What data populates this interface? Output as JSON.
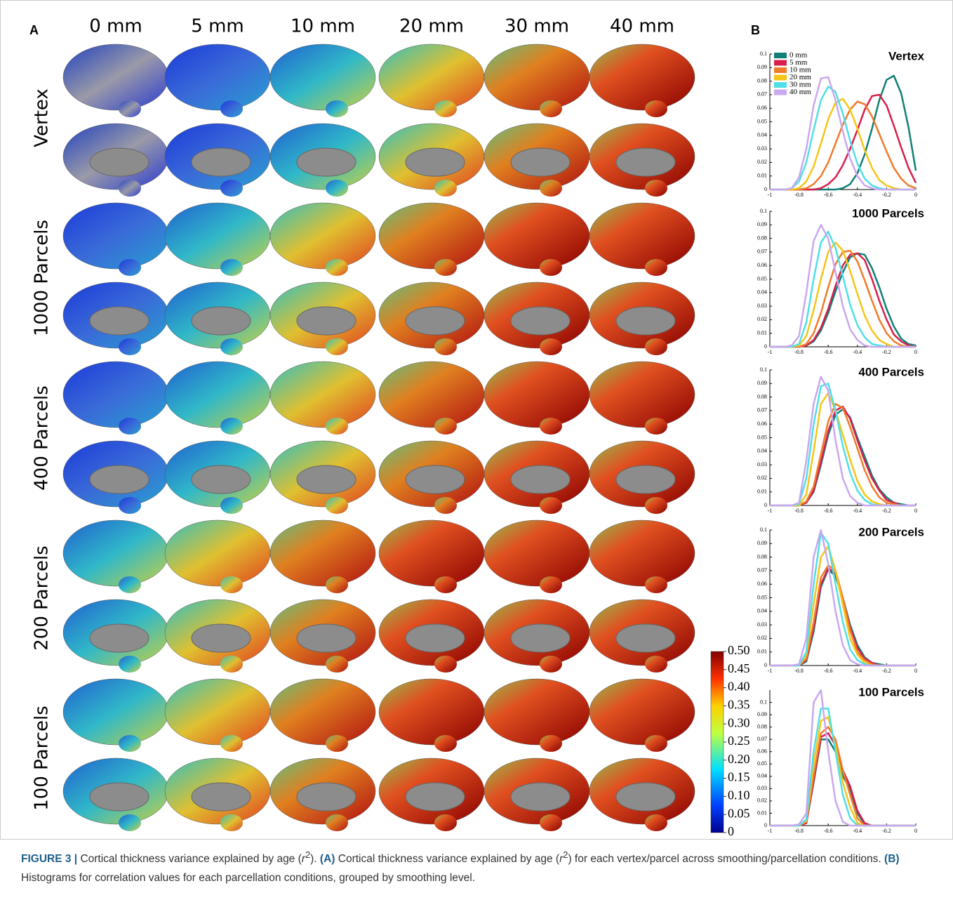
{
  "panel_a": {
    "label": "A",
    "columns": [
      "0 mm",
      "5 mm",
      "10 mm",
      "20 mm",
      "30 mm",
      "40 mm"
    ],
    "rows": [
      "Vertex",
      "1000 Parcels",
      "400 Parcels",
      "200 Parcels",
      "100 Parcels"
    ],
    "colorbar": {
      "lim": [
        0,
        0.5
      ],
      "ticks": [
        0,
        0.05,
        {
          "value": 0.1,
          "label": "0.10"
        },
        0.15,
        {
          "value": 0.2,
          "label": "0.20"
        },
        0.25,
        {
          "value": 0.3,
          "label": "0.30"
        },
        0.35,
        {
          "value": 0.4,
          "label": "0.40"
        },
        0.45,
        {
          "value": 0.5,
          "label": "0.50"
        }
      ]
    }
  },
  "panel_b": {
    "label": "B"
  },
  "chart_data": [
    {
      "type": "line",
      "title": "Vertex",
      "legend": "upper left",
      "x": [
        -1,
        -0.95,
        -0.9,
        -0.85,
        -0.8,
        -0.75,
        -0.7,
        -0.65,
        -0.6,
        -0.55,
        -0.5,
        -0.45,
        -0.4,
        -0.35,
        -0.3,
        -0.25,
        -0.2,
        -0.15,
        -0.1,
        -0.05,
        0
      ],
      "xlim": [
        -1,
        0
      ],
      "ylim": [
        0,
        0.1
      ],
      "xticks": [
        -1,
        -0.8,
        -0.6,
        -0.4,
        -0.2,
        0
      ],
      "yticks": [
        0,
        0.01,
        0.02,
        0.03,
        0.04,
        0.05,
        0.06,
        0.07,
        0.08,
        0.09,
        0.1
      ],
      "series": [
        {
          "name": "0 mm",
          "color": "#0f7f78",
          "values": [
            0,
            0,
            0,
            0,
            0,
            0,
            0,
            0,
            0,
            0,
            0.001,
            0.004,
            0.012,
            0.026,
            0.045,
            0.066,
            0.081,
            0.084,
            0.071,
            0.046,
            0.014
          ]
        },
        {
          "name": "5 mm",
          "color": "#d81f4a",
          "values": [
            0,
            0,
            0,
            0,
            0,
            0,
            0,
            0.001,
            0.004,
            0.009,
            0.018,
            0.03,
            0.044,
            0.059,
            0.069,
            0.07,
            0.062,
            0.047,
            0.031,
            0.016,
            0.005
          ]
        },
        {
          "name": "10 mm",
          "color": "#f07b2a",
          "values": [
            0,
            0,
            0,
            0,
            0,
            0.001,
            0.004,
            0.01,
            0.02,
            0.034,
            0.048,
            0.059,
            0.065,
            0.063,
            0.054,
            0.041,
            0.028,
            0.016,
            0.008,
            0.003,
            0.001
          ]
        },
        {
          "name": "20 mm",
          "color": "#f5c518",
          "values": [
            0,
            0,
            0,
            0,
            0.001,
            0.006,
            0.017,
            0.034,
            0.052,
            0.064,
            0.067,
            0.059,
            0.045,
            0.029,
            0.016,
            0.007,
            0.003,
            0.001,
            0,
            0,
            0
          ]
        },
        {
          "name": "30 mm",
          "color": "#4ee0e6",
          "values": [
            0,
            0,
            0,
            0.001,
            0.006,
            0.02,
            0.044,
            0.066,
            0.076,
            0.072,
            0.056,
            0.036,
            0.019,
            0.008,
            0.003,
            0.001,
            0,
            0,
            0,
            0,
            0
          ]
        },
        {
          "name": "40 mm",
          "color": "#c9a8f0",
          "values": [
            0,
            0,
            0,
            0.001,
            0.009,
            0.03,
            0.062,
            0.082,
            0.083,
            0.066,
            0.043,
            0.023,
            0.01,
            0.003,
            0.001,
            0,
            0,
            0,
            0,
            0,
            0
          ]
        }
      ]
    },
    {
      "type": "line",
      "title": "1000 Parcels",
      "x": [
        -1,
        -0.95,
        -0.9,
        -0.85,
        -0.8,
        -0.75,
        -0.7,
        -0.65,
        -0.6,
        -0.55,
        -0.5,
        -0.45,
        -0.4,
        -0.35,
        -0.3,
        -0.25,
        -0.2,
        -0.15,
        -0.1,
        -0.05,
        0
      ],
      "xlim": [
        -1,
        0
      ],
      "ylim": [
        0,
        0.1
      ],
      "xticks": [
        -1,
        -0.8,
        -0.6,
        -0.4,
        -0.2,
        0
      ],
      "yticks": [
        0,
        0.01,
        0.02,
        0.03,
        0.04,
        0.05,
        0.06,
        0.07,
        0.08,
        0.09,
        0.1
      ],
      "series": [
        {
          "color": "#0f7f78",
          "values": [
            0,
            0,
            0,
            0,
            0,
            0.001,
            0.004,
            0.012,
            0.025,
            0.041,
            0.055,
            0.066,
            0.069,
            0.068,
            0.058,
            0.044,
            0.028,
            0.015,
            0.006,
            0.002,
            0.001
          ]
        },
        {
          "color": "#d81f4a",
          "values": [
            0,
            0,
            0,
            0,
            0,
            0.001,
            0.005,
            0.014,
            0.028,
            0.045,
            0.06,
            0.068,
            0.069,
            0.064,
            0.05,
            0.034,
            0.02,
            0.009,
            0.004,
            0.001,
            0
          ]
        },
        {
          "color": "#f07b2a",
          "values": [
            0,
            0,
            0,
            0,
            0,
            0.002,
            0.01,
            0.025,
            0.044,
            0.061,
            0.07,
            0.071,
            0.063,
            0.049,
            0.034,
            0.02,
            0.01,
            0.004,
            0.001,
            0,
            0
          ]
        },
        {
          "color": "#f5c518",
          "values": [
            0,
            0,
            0,
            0,
            0.001,
            0.008,
            0.027,
            0.05,
            0.07,
            0.077,
            0.071,
            0.056,
            0.039,
            0.023,
            0.012,
            0.005,
            0.002,
            0,
            0,
            0,
            0
          ]
        },
        {
          "color": "#4ee0e6",
          "values": [
            0,
            0,
            0,
            0,
            0.002,
            0.018,
            0.05,
            0.077,
            0.085,
            0.073,
            0.052,
            0.031,
            0.016,
            0.007,
            0.002,
            0.001,
            0,
            0,
            0,
            0,
            0
          ]
        },
        {
          "color": "#c9a8f0",
          "values": [
            0,
            0,
            0,
            0.001,
            0.008,
            0.04,
            0.078,
            0.09,
            0.08,
            0.055,
            0.03,
            0.013,
            0.005,
            0.001,
            0,
            0,
            0,
            0,
            0,
            0,
            0
          ]
        }
      ]
    },
    {
      "type": "line",
      "title": "400 Parcels",
      "x": [
        -1,
        -0.95,
        -0.9,
        -0.85,
        -0.8,
        -0.75,
        -0.7,
        -0.65,
        -0.6,
        -0.55,
        -0.5,
        -0.45,
        -0.4,
        -0.35,
        -0.3,
        -0.25,
        -0.2,
        -0.15,
        -0.1,
        -0.05,
        0
      ],
      "xlim": [
        -1,
        0
      ],
      "ylim": [
        0,
        0.1
      ],
      "xticks": [
        -1,
        -0.8,
        -0.6,
        -0.4,
        -0.2,
        0
      ],
      "yticks": [
        0,
        0.01,
        0.02,
        0.03,
        0.04,
        0.05,
        0.06,
        0.07,
        0.08,
        0.09,
        0.1
      ],
      "series": [
        {
          "color": "#0f7f78",
          "values": [
            0,
            0,
            0,
            0,
            0,
            0.002,
            0.01,
            0.03,
            0.052,
            0.067,
            0.071,
            0.065,
            0.05,
            0.036,
            0.022,
            0.012,
            0.006,
            0.002,
            0.001,
            0,
            0
          ]
        },
        {
          "color": "#d81f4a",
          "values": [
            0,
            0,
            0,
            0,
            0,
            0.002,
            0.011,
            0.032,
            0.055,
            0.07,
            0.073,
            0.064,
            0.048,
            0.033,
            0.02,
            0.011,
            0.004,
            0.002,
            0,
            0,
            0
          ]
        },
        {
          "color": "#f07b2a",
          "values": [
            0,
            0,
            0,
            0,
            0,
            0.003,
            0.014,
            0.038,
            0.062,
            0.075,
            0.072,
            0.058,
            0.042,
            0.026,
            0.014,
            0.006,
            0.002,
            0.001,
            0,
            0,
            0
          ]
        },
        {
          "color": "#f5c518",
          "values": [
            0,
            0,
            0,
            0,
            0,
            0.008,
            0.04,
            0.075,
            0.083,
            0.07,
            0.052,
            0.034,
            0.018,
            0.008,
            0.003,
            0.001,
            0,
            0,
            0,
            0,
            0
          ]
        },
        {
          "color": "#4ee0e6",
          "values": [
            0,
            0,
            0,
            0,
            0.001,
            0.02,
            0.06,
            0.088,
            0.09,
            0.07,
            0.044,
            0.024,
            0.011,
            0.004,
            0.001,
            0,
            0,
            0,
            0,
            0,
            0
          ]
        },
        {
          "color": "#c9a8f0",
          "values": [
            0,
            0,
            0,
            0,
            0.002,
            0.033,
            0.075,
            0.095,
            0.085,
            0.048,
            0.02,
            0.007,
            0.002,
            0,
            0,
            0,
            0,
            0,
            0,
            0,
            0
          ]
        }
      ]
    },
    {
      "type": "line",
      "title": "200 Parcels",
      "x": [
        -1,
        -0.95,
        -0.9,
        -0.85,
        -0.8,
        -0.75,
        -0.7,
        -0.65,
        -0.6,
        -0.55,
        -0.5,
        -0.45,
        -0.4,
        -0.35,
        -0.3,
        -0.25,
        -0.2,
        -0.15,
        -0.1,
        -0.05,
        0
      ],
      "xlim": [
        -1,
        0
      ],
      "ylim": [
        0,
        0.1
      ],
      "xticks": [
        -1,
        -0.8,
        -0.6,
        -0.4,
        -0.2,
        0
      ],
      "yticks": [
        0,
        0.01,
        0.02,
        0.03,
        0.04,
        0.05,
        0.06,
        0.07,
        0.08,
        0.09,
        0.1
      ],
      "series": [
        {
          "color": "#0f7f78",
          "values": [
            0,
            0,
            0,
            0,
            0,
            0.003,
            0.025,
            0.058,
            0.071,
            0.066,
            0.05,
            0.03,
            0.015,
            0.006,
            0.002,
            0.001,
            0,
            0,
            0,
            0,
            0
          ]
        },
        {
          "color": "#d81f4a",
          "values": [
            0,
            0,
            0,
            0,
            0,
            0.004,
            0.028,
            0.06,
            0.072,
            0.068,
            0.05,
            0.028,
            0.013,
            0.005,
            0.002,
            0,
            0,
            0,
            0,
            0,
            0
          ]
        },
        {
          "color": "#f07b2a",
          "values": [
            0,
            0,
            0,
            0,
            0,
            0.005,
            0.032,
            0.065,
            0.074,
            0.07,
            0.05,
            0.026,
            0.01,
            0.004,
            0.001,
            0,
            0,
            0,
            0,
            0,
            0
          ]
        },
        {
          "color": "#f5c518",
          "values": [
            0,
            0,
            0,
            0,
            0,
            0.008,
            0.045,
            0.08,
            0.088,
            0.07,
            0.045,
            0.02,
            0.008,
            0.002,
            0,
            0,
            0,
            0,
            0,
            0,
            0
          ]
        },
        {
          "color": "#4ee0e6",
          "values": [
            0,
            0,
            0,
            0,
            0,
            0.01,
            0.06,
            0.098,
            0.09,
            0.06,
            0.032,
            0.012,
            0.004,
            0.001,
            0,
            0,
            0,
            0,
            0,
            0,
            0
          ]
        },
        {
          "color": "#c9a8f0",
          "values": [
            0,
            0,
            0,
            0,
            0.001,
            0.02,
            0.08,
            0.1,
            0.075,
            0.04,
            0.015,
            0.004,
            0.001,
            0,
            0,
            0,
            0,
            0,
            0,
            0,
            0
          ]
        }
      ]
    },
    {
      "type": "line",
      "title": "100 Parcels",
      "x": [
        -1,
        -0.95,
        -0.9,
        -0.85,
        -0.8,
        -0.75,
        -0.7,
        -0.65,
        -0.6,
        -0.55,
        -0.5,
        -0.45,
        -0.4,
        -0.35,
        -0.3,
        -0.25,
        -0.2,
        -0.15,
        -0.1,
        -0.05,
        0
      ],
      "xlim": [
        -1,
        0
      ],
      "ylim": [
        0,
        0.11
      ],
      "xticks": [
        -1,
        -0.8,
        -0.6,
        -0.4,
        -0.2,
        0
      ],
      "yticks": [
        0,
        0.01,
        0.02,
        0.03,
        0.04,
        0.05,
        0.06,
        0.07,
        0.08,
        0.09,
        0.1
      ],
      "series": [
        {
          "color": "#0f7f78",
          "values": [
            0,
            0,
            0,
            0,
            0,
            0.002,
            0.035,
            0.07,
            0.07,
            0.06,
            0.04,
            0.03,
            0.01,
            0.001,
            0,
            0,
            0,
            0,
            0,
            0,
            0
          ]
        },
        {
          "color": "#d81f4a",
          "values": [
            0,
            0,
            0,
            0,
            0,
            0.002,
            0.036,
            0.072,
            0.075,
            0.065,
            0.045,
            0.032,
            0.012,
            0.002,
            0,
            0,
            0,
            0,
            0,
            0,
            0
          ]
        },
        {
          "color": "#f07b2a",
          "values": [
            0,
            0,
            0,
            0,
            0,
            0.003,
            0.04,
            0.075,
            0.08,
            0.07,
            0.045,
            0.025,
            0.006,
            0,
            0,
            0,
            0,
            0,
            0,
            0,
            0
          ]
        },
        {
          "color": "#f5c518",
          "values": [
            0,
            0,
            0,
            0,
            0,
            0.004,
            0.05,
            0.085,
            0.088,
            0.065,
            0.035,
            0.015,
            0.002,
            0,
            0,
            0,
            0,
            0,
            0,
            0,
            0
          ]
        },
        {
          "color": "#4ee0e6",
          "values": [
            0,
            0,
            0,
            0,
            0,
            0.005,
            0.06,
            0.095,
            0.095,
            0.06,
            0.025,
            0.006,
            0,
            0,
            0,
            0,
            0,
            0,
            0,
            0,
            0
          ]
        },
        {
          "color": "#c9a8f0",
          "values": [
            0,
            0,
            0,
            0,
            0.001,
            0.01,
            0.1,
            0.11,
            0.06,
            0.02,
            0.003,
            0,
            0,
            0,
            0,
            0,
            0,
            0,
            0,
            0,
            0
          ]
        }
      ]
    }
  ],
  "caption": [
    "FIGURE 3 |",
    " Cortical thickness variance explained by age (",
    "r",
    "2",
    "). ",
    "(A)",
    " Cortical thickness variance explained by age (",
    "r",
    "2",
    ") for each vertex/parcel across smoothing/parcellation conditions. ",
    "(B)",
    " Histograms for correlation values for each parcellation conditions, grouped by smoothing level."
  ]
}
